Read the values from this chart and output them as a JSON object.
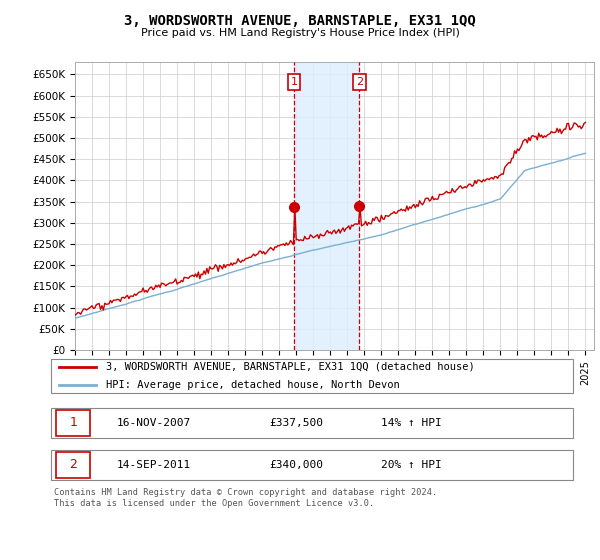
{
  "title": "3, WORDSWORTH AVENUE, BARNSTAPLE, EX31 1QQ",
  "subtitle": "Price paid vs. HM Land Registry's House Price Index (HPI)",
  "ylabel_ticks": [
    "£0",
    "£50K",
    "£100K",
    "£150K",
    "£200K",
    "£250K",
    "£300K",
    "£350K",
    "£400K",
    "£450K",
    "£500K",
    "£550K",
    "£600K",
    "£650K"
  ],
  "ytick_values": [
    0,
    50000,
    100000,
    150000,
    200000,
    250000,
    300000,
    350000,
    400000,
    450000,
    500000,
    550000,
    600000,
    650000
  ],
  "ylim": [
    0,
    680000
  ],
  "xlim_start": 1995.0,
  "xlim_end": 2025.5,
  "transaction1": {
    "date": "16-NOV-2007",
    "price": 337500,
    "label": "1",
    "x": 2007.88
  },
  "transaction2": {
    "date": "14-SEP-2011",
    "price": 340000,
    "label": "2",
    "x": 2011.71
  },
  "legend_line1": "3, WORDSWORTH AVENUE, BARNSTAPLE, EX31 1QQ (detached house)",
  "legend_line2": "HPI: Average price, detached house, North Devon",
  "table_row1": [
    "1",
    "16-NOV-2007",
    "£337,500",
    "14% ↑ HPI"
  ],
  "table_row2": [
    "2",
    "14-SEP-2011",
    "£340,000",
    "20% ↑ HPI"
  ],
  "footer": "Contains HM Land Registry data © Crown copyright and database right 2024.\nThis data is licensed under the Open Government Licence v3.0.",
  "hpi_color": "#7bafd4",
  "price_color": "#cc0000",
  "shade_color": "#ddeeff",
  "annotation_box_color": "#cc0000",
  "background_color": "#ffffff",
  "grid_color": "#cccccc"
}
